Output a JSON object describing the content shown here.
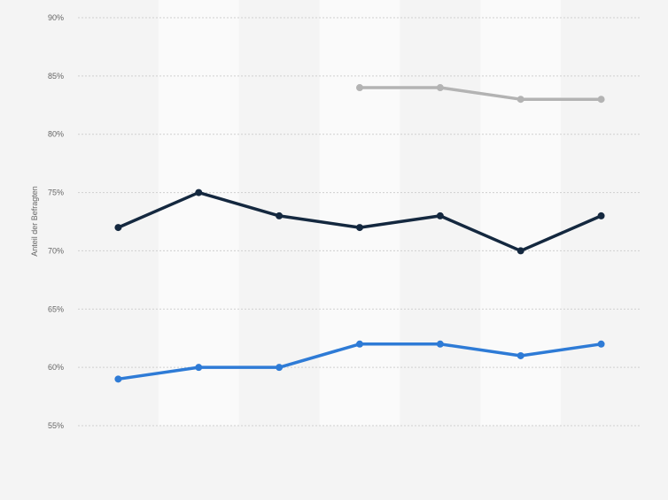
{
  "chart_data": {
    "type": "line",
    "ylabel": "Anteil der Befragten",
    "ylim": [
      55,
      90
    ],
    "y_ticks": [
      {
        "value": 90,
        "label": "90%"
      },
      {
        "value": 85,
        "label": "85%"
      },
      {
        "value": 80,
        "label": "80%"
      },
      {
        "value": 75,
        "label": "75%"
      },
      {
        "value": 70,
        "label": "70%"
      },
      {
        "value": 65,
        "label": "65%"
      },
      {
        "value": 60,
        "label": "60%"
      },
      {
        "value": 55,
        "label": "55%"
      }
    ],
    "grid": true,
    "category_count": 7,
    "series": [
      {
        "color": "#b3b3b3",
        "values": [
          null,
          null,
          null,
          84,
          84,
          83,
          83
        ]
      },
      {
        "color": "#14283f",
        "values": [
          72,
          75,
          73,
          72,
          73,
          70,
          73
        ]
      },
      {
        "color": "#2e7bd6",
        "values": [
          59,
          60,
          60,
          62,
          62,
          61,
          62
        ]
      }
    ]
  }
}
